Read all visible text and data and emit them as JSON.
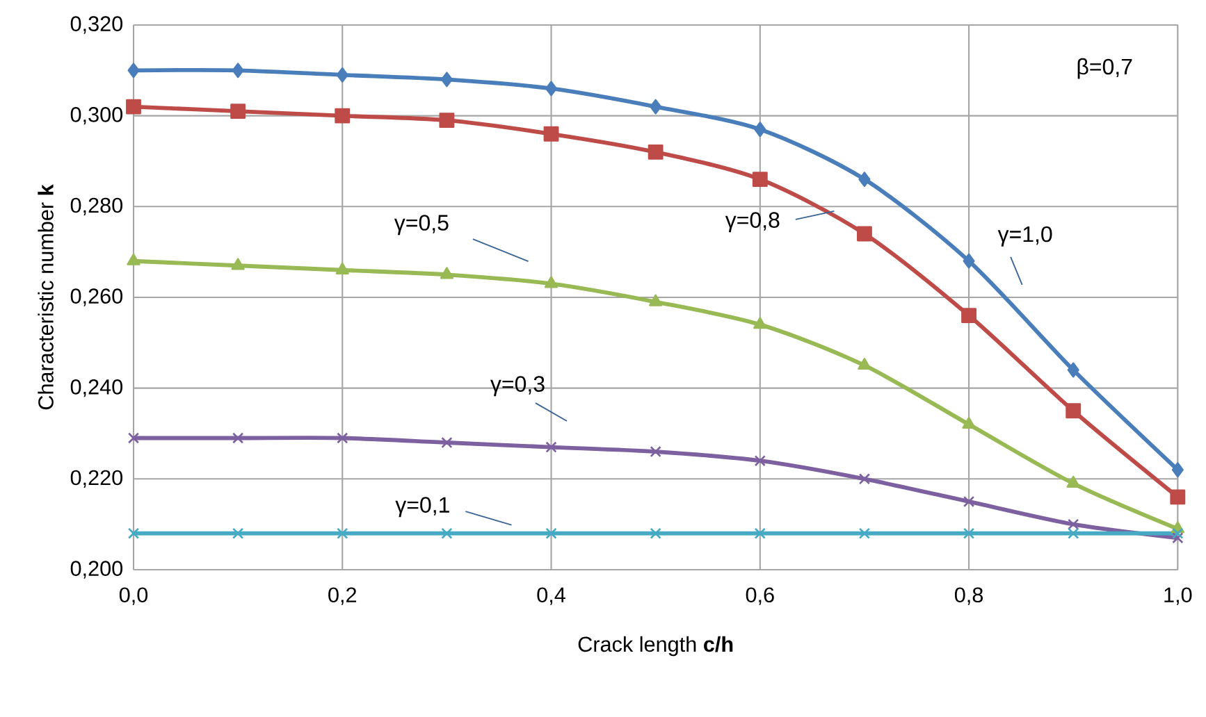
{
  "chart_data": {
    "type": "line",
    "xlabel": "Crack length **c/h**",
    "ylabel": "Characteristic number **k**",
    "x": [
      0.0,
      0.1,
      0.2,
      0.3,
      0.4,
      0.5,
      0.6,
      0.7,
      0.8,
      0.9,
      1.0
    ],
    "series": [
      {
        "color": "#4a7ebb",
        "marker": "diamond",
        "values": [
          0.31,
          0.31,
          0.309,
          0.308,
          0.306,
          0.302,
          0.297,
          0.286,
          0.268,
          0.244,
          0.222
        ]
      },
      {
        "color": "#be4b48",
        "marker": "square",
        "values": [
          0.302,
          0.301,
          0.3,
          0.299,
          0.296,
          0.292,
          0.286,
          0.274,
          0.256,
          0.235,
          0.216
        ]
      },
      {
        "color": "#98b954",
        "marker": "triangle",
        "values": [
          0.268,
          0.267,
          0.266,
          0.265,
          0.263,
          0.259,
          0.254,
          0.245,
          0.232,
          0.219,
          0.209
        ]
      },
      {
        "color": "#7d60a0",
        "marker": "cross",
        "values": [
          0.229,
          0.229,
          0.229,
          0.228,
          0.227,
          0.226,
          0.224,
          0.22,
          0.215,
          0.21,
          0.207
        ]
      },
      {
        "color": "#46aac5",
        "marker": "cross",
        "values": [
          0.208,
          0.208,
          0.208,
          0.208,
          0.208,
          0.208,
          0.208,
          0.208,
          0.208,
          0.208,
          0.208
        ]
      }
    ],
    "xlim": [
      0.0,
      1.0
    ],
    "ylim": [
      0.2,
      0.32
    ],
    "xticks": [
      {
        "value": 0.0,
        "label": "0,0"
      },
      {
        "value": 0.2,
        "label": "0,2"
      },
      {
        "value": 0.4,
        "label": "0,4"
      },
      {
        "value": 0.6,
        "label": "0,6"
      },
      {
        "value": 0.8,
        "label": "0,8"
      },
      {
        "value": 1.0,
        "label": "1,0"
      }
    ],
    "yticks": [
      {
        "value": 0.2,
        "label": "0,200"
      },
      {
        "value": 0.22,
        "label": "0,220"
      },
      {
        "value": 0.24,
        "label": "0,240"
      },
      {
        "value": 0.26,
        "label": "0,260"
      },
      {
        "value": 0.28,
        "label": "0,280"
      },
      {
        "value": 0.3,
        "label": "0,300"
      },
      {
        "value": 0.32,
        "label": "0,320"
      }
    ],
    "grid": true,
    "line_style": "solid",
    "annotations": [
      "γ=1,0",
      {
        "text": "γ=0,8",
        "x": 0.671,
        "y": 0.279
      },
      "γ=0,5",
      "γ=0,3",
      "γ=0,1",
      "β=0,7"
    ]
  }
}
